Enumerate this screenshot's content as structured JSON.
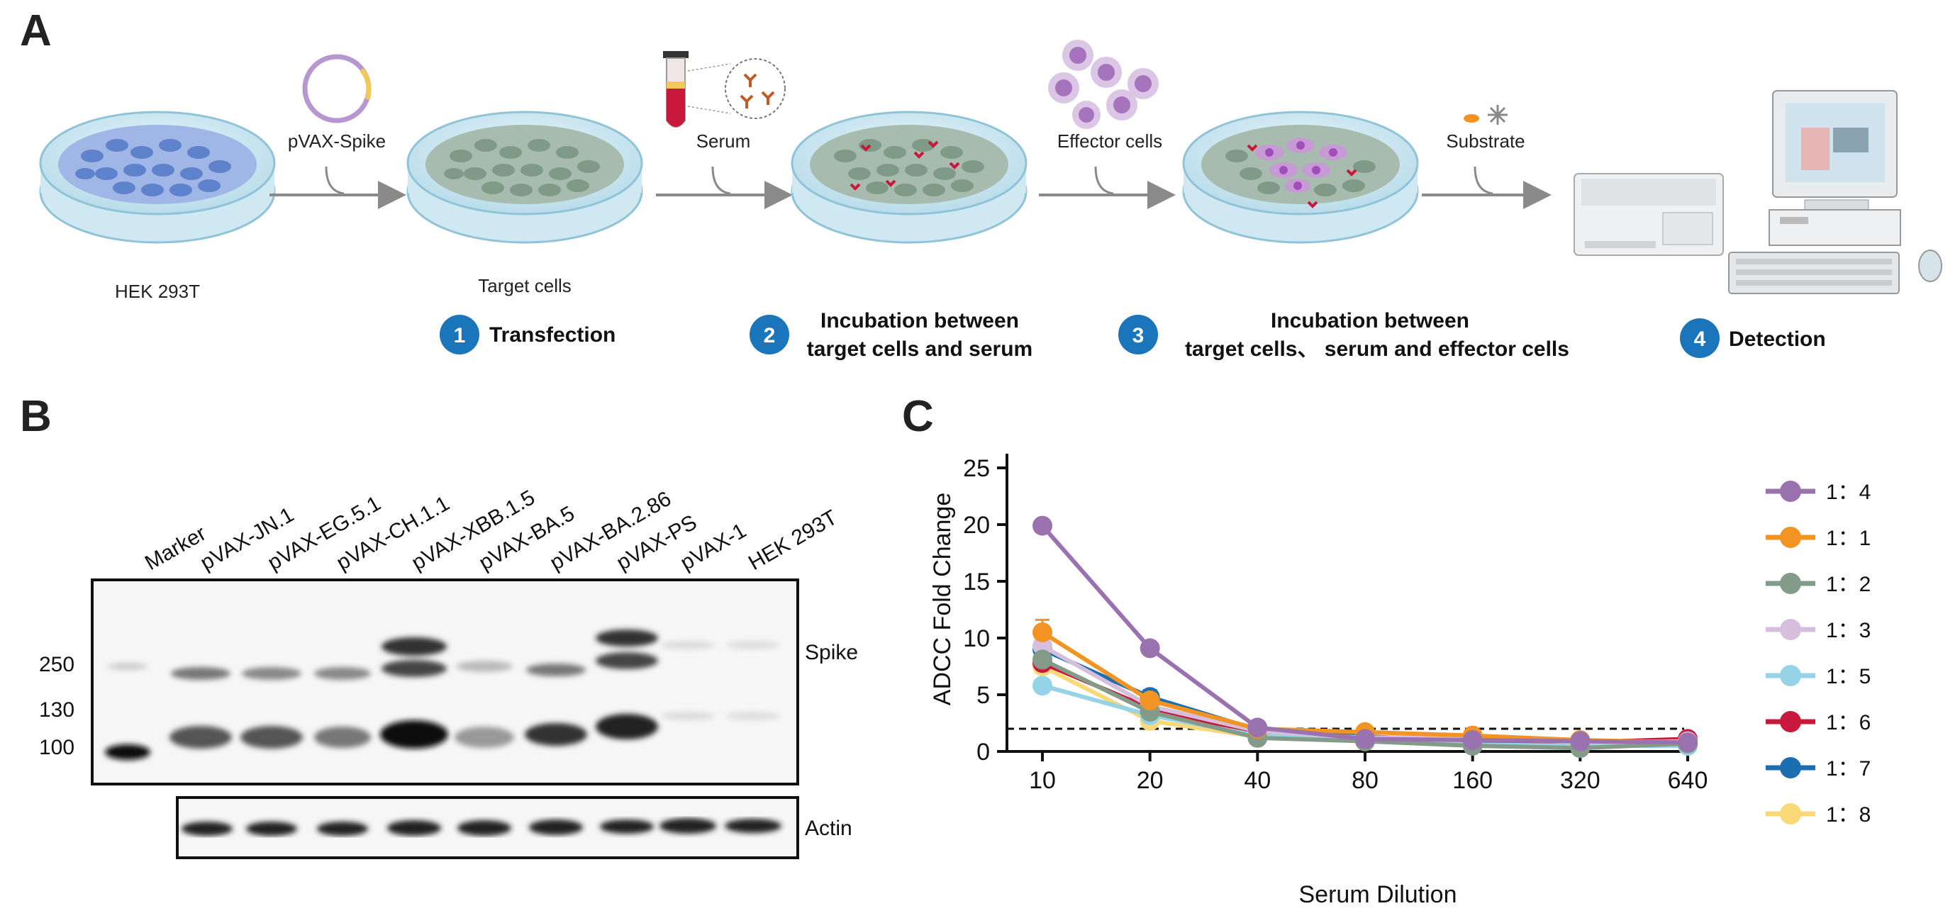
{
  "panel_a": {
    "letter": "A",
    "dish_labels": [
      "HEK 293T",
      "Target cells"
    ],
    "arrow_labels": [
      "pVAX-Spike",
      "Serum",
      "Effector cells",
      "Substrate"
    ],
    "steps": [
      {
        "num": "1",
        "lines": [
          "Transfection"
        ]
      },
      {
        "num": "2",
        "lines": [
          "Incubation between",
          "target cells and serum"
        ]
      },
      {
        "num": "3",
        "lines": [
          "Incubation between",
          "target cells、 serum and effector cells"
        ]
      },
      {
        "num": "4",
        "lines": [
          "Detection"
        ]
      }
    ],
    "colors": {
      "hek": "#7b9ad8",
      "target": "#8ea898",
      "effector": "#b48ec8",
      "badge": "#1b75bb"
    }
  },
  "panel_b": {
    "letter": "B",
    "lanes": [
      "Marker",
      "pVAX-JN.1",
      "pVAX-EG.5.1",
      "pVAX-CH.1.1",
      "pVAX-XBB.1.5",
      "pVAX-BA.5",
      "pVAX-BA.2.86",
      "pVAX-PS",
      "pVAX-1",
      "HEK 293T"
    ],
    "markers": [
      "250",
      "130",
      "100"
    ],
    "blot_labels": {
      "top": "Spike",
      "bottom": "Actin"
    }
  },
  "panel_c": {
    "letter": "C",
    "chart_data": {
      "type": "line",
      "xlabel": "Serum Dilution",
      "ylabel": "ADCC Fold Change",
      "categories": [
        "10",
        "20",
        "40",
        "80",
        "160",
        "320",
        "640"
      ],
      "ylim": [
        0,
        25
      ],
      "yticks": [
        0,
        5,
        10,
        15,
        20,
        25
      ],
      "threshold": 2,
      "legend_position": "right",
      "series": [
        {
          "name": "1：4",
          "color": "#9b72b0",
          "values": [
            19.9,
            9.1,
            2.1,
            1.1,
            1.0,
            0.9,
            0.8
          ],
          "errors": [
            0.2,
            0.2,
            0.2,
            0.1,
            0.1,
            0.1,
            0.1
          ]
        },
        {
          "name": "1：1",
          "color": "#f29424",
          "values": [
            10.5,
            4.5,
            2.0,
            1.7,
            1.4,
            1.0,
            0.8
          ],
          "errors": [
            1.1,
            0.3,
            0.2,
            0.1,
            0.1,
            0.1,
            0.1
          ]
        },
        {
          "name": "1：2",
          "color": "#849b8a",
          "values": [
            8.1,
            3.5,
            1.2,
            0.9,
            0.5,
            0.3,
            0.7
          ],
          "errors": [
            0.5,
            0.3,
            0.1,
            0.1,
            0.1,
            0.1,
            0.1
          ]
        },
        {
          "name": "1：3",
          "color": "#d6bfdc",
          "values": [
            9.3,
            4.0,
            1.8,
            1.2,
            1.3,
            0.8,
            0.9
          ],
          "errors": [
            0.4,
            0.3,
            0.2,
            0.1,
            0.1,
            0.1,
            0.1
          ]
        },
        {
          "name": "1：5",
          "color": "#94d4e6",
          "values": [
            5.8,
            3.2,
            1.4,
            1.0,
            0.6,
            0.5,
            0.5
          ],
          "errors": [
            0.2,
            0.2,
            0.1,
            0.1,
            0.1,
            0.1,
            0.1
          ]
        },
        {
          "name": "1：6",
          "color": "#c8193c",
          "values": [
            7.8,
            3.8,
            1.6,
            1.2,
            0.9,
            0.8,
            1.1
          ],
          "errors": [
            0.3,
            0.2,
            0.1,
            0.1,
            0.1,
            0.1,
            0.2
          ]
        },
        {
          "name": "1：7",
          "color": "#1b6fb0",
          "values": [
            9.0,
            4.8,
            1.9,
            1.3,
            1.0,
            0.8,
            0.9
          ],
          "errors": [
            0.4,
            0.6,
            0.2,
            0.1,
            0.1,
            0.1,
            0.1
          ]
        },
        {
          "name": "1：8",
          "color": "#f9d977",
          "values": [
            7.5,
            2.7,
            1.3,
            0.9,
            0.7,
            0.5,
            0.5
          ],
          "errors": [
            0.3,
            0.2,
            0.1,
            0.1,
            0.1,
            0.1,
            0.1
          ]
        }
      ]
    }
  }
}
